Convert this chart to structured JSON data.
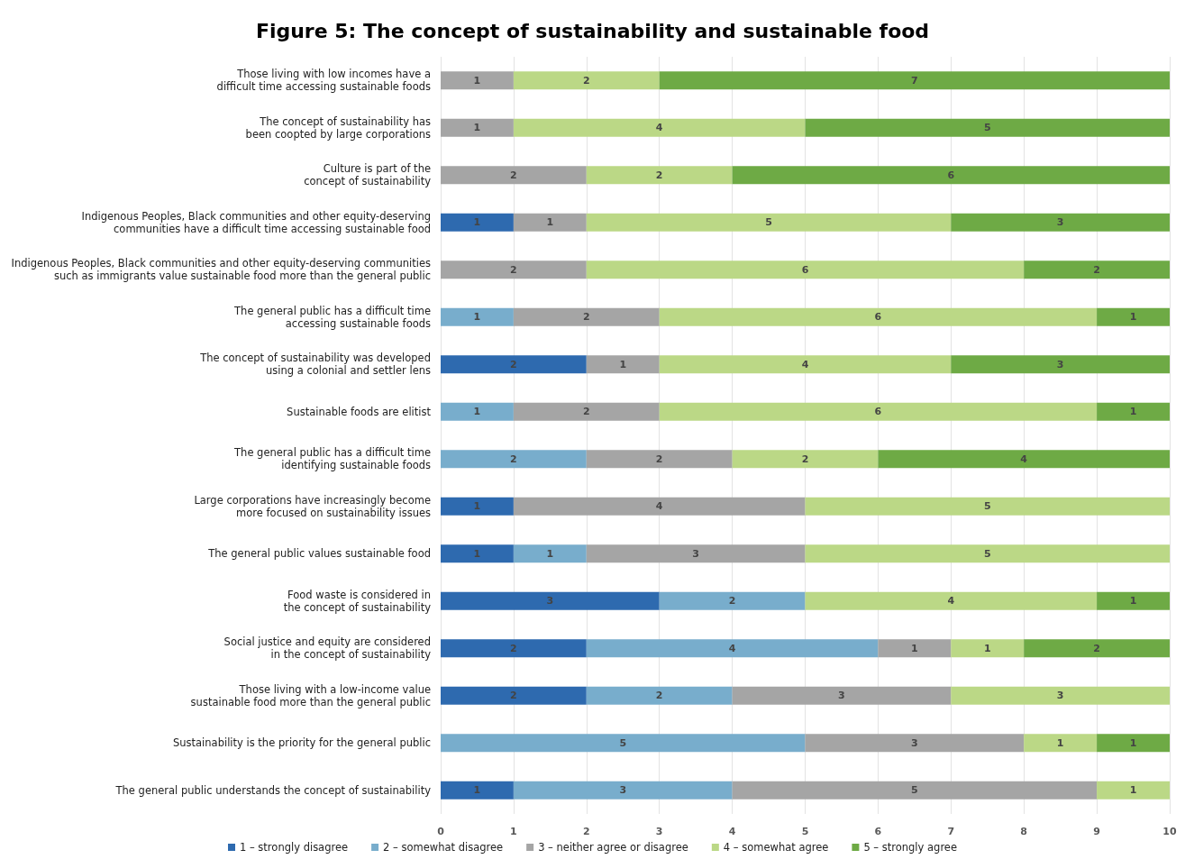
{
  "chart_data": {
    "type": "bar",
    "orientation": "horizontal",
    "stacked": true,
    "data_labels": true,
    "grid": "x",
    "legend": "bottom",
    "title": "Figure 5: The concept of sustainability and sustainable food",
    "categories": [
      "Those living with low incomes have a\ndifficult time accessing sustainable foods",
      "The concept of sustainability has\nbeen coopted by large corporations",
      "Culture is part of the\nconcept of sustainability",
      "Indigenous Peoples, Black communities and other equity-deserving\ncommunities have a difficult time accessing sustainable food",
      "Indigenous Peoples, Black communities and other equity-deserving communities\nsuch as immigrants value sustainable food more than the general public",
      "The general public has a difficult time\naccessing sustainable foods",
      "The concept of sustainability was developed\nusing a colonial and settler lens",
      "Sustainable foods are elitist",
      "The general public has a difficult time\nidentifying sustainable foods",
      "Large corporations have increasingly become\nmore focused on sustainability issues",
      "The general public values sustainable food",
      "Food waste is considered in\nthe concept of sustainability",
      "Social justice and equity are considered\nin the concept of sustainability",
      "Those living with a low-income value\nsustainable food more than the general public",
      "Sustainability is the priority for the general public",
      "The general public understands the concept of sustainability"
    ],
    "xlim": [
      0,
      10
    ],
    "xticks": [
      0,
      1,
      2,
      3,
      4,
      5,
      6,
      7,
      8,
      9,
      10
    ],
    "series": [
      {
        "name": "1 – strongly disagree",
        "color": "#2e6aaf",
        "values": [
          null,
          null,
          null,
          1,
          null,
          null,
          2,
          null,
          null,
          1,
          1,
          3,
          2,
          2,
          null,
          1
        ]
      },
      {
        "name": "2 – somewhat disagree",
        "color": "#78adcc",
        "values": [
          null,
          null,
          null,
          null,
          null,
          1,
          null,
          1,
          2,
          null,
          1,
          2,
          4,
          2,
          5,
          3
        ]
      },
      {
        "name": "3 – neither agree or disagree",
        "color": "#a5a5a5",
        "values": [
          1,
          1,
          2,
          1,
          2,
          2,
          1,
          2,
          2,
          4,
          3,
          null,
          1,
          3,
          3,
          5
        ]
      },
      {
        "name": "4 – somewhat agree",
        "color": "#bbd886",
        "values": [
          2,
          4,
          2,
          5,
          6,
          6,
          4,
          6,
          2,
          5,
          5,
          4,
          1,
          3,
          1,
          1
        ]
      },
      {
        "name": "5 – strongly agree",
        "color": "#6eaa45",
        "values": [
          7,
          5,
          6,
          3,
          2,
          1,
          3,
          1,
          4,
          null,
          null,
          1,
          2,
          null,
          1,
          null
        ]
      }
    ]
  }
}
